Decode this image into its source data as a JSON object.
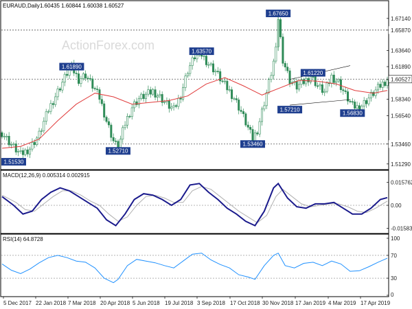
{
  "header": {
    "symbol": "EURAUD,Daily",
    "ohlc": "1.60435 1.60844 1.60038 1.60527"
  },
  "watermark": "ActionForex.com",
  "colors": {
    "candle": "#2e8b57",
    "ma": "#e03a3a",
    "macd": "#1a1a8c",
    "signal": "#b0b0b0",
    "rsi": "#1e90ff",
    "annotation_bg": "#1f3f8f",
    "hline": "#555555"
  },
  "chart_data": [
    {
      "type": "line",
      "panel": "price",
      "title": "",
      "y_ticks": [
        "1.67140",
        "1.65870",
        "1.63640",
        "1.61890",
        "1.60527",
        "1.58340",
        "1.56540",
        "1.53460",
        "1.51290"
      ],
      "ylim": [
        1.509,
        1.681
      ],
      "x_ticks": [
        "5 Dec 2017",
        "22 Jan 2018",
        "7 Mar 2018",
        "20 Apr 2018",
        "5 Jun 2018",
        "19 Jul 2018",
        "3 Sep 2018",
        "17 Oct 2018",
        "30 Nov 2018",
        "17 Jan 2019",
        "4 Mar 2019",
        "17 Apr 2019"
      ],
      "close_path": [
        [
          0,
          1.547
        ],
        [
          4,
          1.534
        ],
        [
          8,
          1.523
        ],
        [
          12,
          1.53
        ],
        [
          16,
          1.545
        ],
        [
          20,
          1.572
        ],
        [
          24,
          1.592
        ],
        [
          28,
          1.612
        ],
        [
          30,
          1.618
        ],
        [
          33,
          1.605
        ],
        [
          36,
          1.61
        ],
        [
          39,
          1.598
        ],
        [
          42,
          1.585
        ],
        [
          45,
          1.56
        ],
        [
          48,
          1.538
        ],
        [
          50,
          1.53
        ],
        [
          53,
          1.557
        ],
        [
          56,
          1.575
        ],
        [
          59,
          1.584
        ],
        [
          62,
          1.588
        ],
        [
          65,
          1.592
        ],
        [
          68,
          1.586
        ],
        [
          71,
          1.578
        ],
        [
          74,
          1.572
        ],
        [
          77,
          1.588
        ],
        [
          80,
          1.615
        ],
        [
          83,
          1.63
        ],
        [
          86,
          1.632
        ],
        [
          89,
          1.622
        ],
        [
          92,
          1.614
        ],
        [
          95,
          1.602
        ],
        [
          98,
          1.592
        ],
        [
          100,
          1.585
        ],
        [
          103,
          1.57
        ],
        [
          106,
          1.552
        ],
        [
          108,
          1.54
        ],
        [
          110,
          1.55
        ],
        [
          113,
          1.58
        ],
        [
          116,
          1.612
        ],
        [
          118,
          1.636
        ],
        [
          119,
          1.672
        ],
        [
          121,
          1.627
        ],
        [
          124,
          1.604
        ],
        [
          127,
          1.597
        ],
        [
          130,
          1.602
        ],
        [
          133,
          1.609
        ],
        [
          136,
          1.598
        ],
        [
          139,
          1.591
        ],
        [
          142,
          1.608
        ],
        [
          145,
          1.602
        ],
        [
          148,
          1.588
        ],
        [
          151,
          1.576
        ],
        [
          154,
          1.574
        ],
        [
          157,
          1.582
        ],
        [
          160,
          1.59
        ],
        [
          163,
          1.598
        ],
        [
          166,
          1.605
        ]
      ],
      "ma_path": [
        [
          0,
          1.53
        ],
        [
          8,
          1.532
        ],
        [
          16,
          1.54
        ],
        [
          24,
          1.56
        ],
        [
          32,
          1.578
        ],
        [
          40,
          1.59
        ],
        [
          48,
          1.586
        ],
        [
          56,
          1.578
        ],
        [
          64,
          1.58
        ],
        [
          72,
          1.582
        ],
        [
          80,
          1.587
        ],
        [
          88,
          1.6
        ],
        [
          96,
          1.607
        ],
        [
          104,
          1.598
        ],
        [
          112,
          1.588
        ],
        [
          120,
          1.596
        ],
        [
          128,
          1.604
        ],
        [
          136,
          1.603
        ],
        [
          144,
          1.6
        ],
        [
          152,
          1.593
        ],
        [
          160,
          1.59
        ],
        [
          166,
          1.593
        ]
      ],
      "hlines": [
        1.6587,
        1.60527,
        1.5346
      ],
      "annotations": [
        {
          "label": "1.51530",
          "x": 1,
          "y": 1.5153
        },
        {
          "label": "1.61890",
          "x": 30,
          "y": 1.6189
        },
        {
          "label": "1.52710",
          "x": 50,
          "y": 1.5271
        },
        {
          "label": "1.63570",
          "x": 86,
          "y": 1.6357
        },
        {
          "label": "1.53460",
          "x": 108,
          "y": 1.5346
        },
        {
          "label": "1.67650",
          "x": 119,
          "y": 1.6765
        },
        {
          "label": "1.57210",
          "x": 124,
          "y": 1.5721
        },
        {
          "label": "1.61220",
          "x": 134,
          "y": 1.6122
        },
        {
          "label": "1.56830",
          "x": 151,
          "y": 1.5683
        }
      ],
      "price_label_last": "1.60527",
      "support_label": "1.53460",
      "resistance_label": "1.65870"
    },
    {
      "type": "line",
      "panel": "macd",
      "title": "MACD(12,26,9) 0.005314 0.002915",
      "y_ticks": [
        "0.015762",
        "0.00",
        "-0.015834"
      ],
      "ylim": [
        -0.0175,
        0.0175
      ],
      "macd_path": [
        [
          0,
          0.006
        ],
        [
          5,
          0.0
        ],
        [
          9,
          -0.006
        ],
        [
          13,
          -0.004
        ],
        [
          17,
          0.004
        ],
        [
          21,
          0.009
        ],
        [
          25,
          0.012
        ],
        [
          29,
          0.01
        ],
        [
          33,
          0.006
        ],
        [
          37,
          0.002
        ],
        [
          41,
          -0.002
        ],
        [
          45,
          -0.01
        ],
        [
          49,
          -0.014
        ],
        [
          53,
          -0.006
        ],
        [
          57,
          0.004
        ],
        [
          61,
          0.008
        ],
        [
          65,
          0.007
        ],
        [
          69,
          0.004
        ],
        [
          73,
          0.0
        ],
        [
          77,
          0.004
        ],
        [
          81,
          0.014
        ],
        [
          85,
          0.015
        ],
        [
          89,
          0.009
        ],
        [
          93,
          0.004
        ],
        [
          97,
          -0.002
        ],
        [
          101,
          -0.006
        ],
        [
          105,
          -0.011
        ],
        [
          109,
          -0.014
        ],
        [
          113,
          -0.004
        ],
        [
          117,
          0.012
        ],
        [
          119,
          0.015
        ],
        [
          123,
          0.005
        ],
        [
          127,
          -0.001
        ],
        [
          131,
          -0.002
        ],
        [
          135,
          0.001
        ],
        [
          139,
          0.001
        ],
        [
          143,
          0.002
        ],
        [
          147,
          -0.002
        ],
        [
          151,
          -0.006
        ],
        [
          155,
          -0.006
        ],
        [
          159,
          -0.002
        ],
        [
          163,
          0.004
        ],
        [
          166,
          0.0053
        ]
      ],
      "signal_path": [
        [
          0,
          0.007
        ],
        [
          6,
          0.002
        ],
        [
          10,
          -0.003
        ],
        [
          14,
          -0.004
        ],
        [
          18,
          0.001
        ],
        [
          22,
          0.006
        ],
        [
          26,
          0.01
        ],
        [
          30,
          0.01
        ],
        [
          34,
          0.007
        ],
        [
          38,
          0.003
        ],
        [
          42,
          0.0
        ],
        [
          46,
          -0.006
        ],
        [
          50,
          -0.011
        ],
        [
          54,
          -0.008
        ],
        [
          58,
          0.0
        ],
        [
          62,
          0.006
        ],
        [
          66,
          0.007
        ],
        [
          70,
          0.005
        ],
        [
          74,
          0.002
        ],
        [
          78,
          0.002
        ],
        [
          82,
          0.01
        ],
        [
          86,
          0.013
        ],
        [
          90,
          0.011
        ],
        [
          94,
          0.006
        ],
        [
          98,
          0.001
        ],
        [
          102,
          -0.004
        ],
        [
          106,
          -0.008
        ],
        [
          110,
          -0.012
        ],
        [
          114,
          -0.007
        ],
        [
          118,
          0.006
        ],
        [
          121,
          0.011
        ],
        [
          125,
          0.006
        ],
        [
          129,
          0.001
        ],
        [
          133,
          -0.001
        ],
        [
          137,
          0.0
        ],
        [
          141,
          0.001
        ],
        [
          145,
          0.001
        ],
        [
          149,
          -0.001
        ],
        [
          153,
          -0.004
        ],
        [
          157,
          -0.005
        ],
        [
          161,
          -0.002
        ],
        [
          166,
          0.0029
        ]
      ]
    },
    {
      "type": "line",
      "panel": "rsi",
      "title": "RSI(14) 64.8728",
      "y_ticks": [
        "100",
        "70",
        "30",
        "0"
      ],
      "ylim": [
        0,
        100
      ],
      "levels": [
        70,
        30
      ],
      "rsi_path": [
        [
          0,
          55
        ],
        [
          4,
          44
        ],
        [
          8,
          38
        ],
        [
          12,
          46
        ],
        [
          16,
          57
        ],
        [
          20,
          66
        ],
        [
          24,
          70
        ],
        [
          28,
          66
        ],
        [
          32,
          60
        ],
        [
          36,
          58
        ],
        [
          40,
          48
        ],
        [
          44,
          30
        ],
        [
          48,
          22
        ],
        [
          50,
          28
        ],
        [
          54,
          52
        ],
        [
          58,
          63
        ],
        [
          62,
          60
        ],
        [
          66,
          57
        ],
        [
          70,
          52
        ],
        [
          74,
          48
        ],
        [
          78,
          60
        ],
        [
          82,
          72
        ],
        [
          86,
          74
        ],
        [
          90,
          62
        ],
        [
          94,
          54
        ],
        [
          98,
          48
        ],
        [
          102,
          36
        ],
        [
          106,
          32
        ],
        [
          109,
          28
        ],
        [
          113,
          52
        ],
        [
          117,
          70
        ],
        [
          119,
          74
        ],
        [
          122,
          52
        ],
        [
          126,
          48
        ],
        [
          130,
          56
        ],
        [
          134,
          58
        ],
        [
          138,
          52
        ],
        [
          142,
          60
        ],
        [
          146,
          55
        ],
        [
          150,
          42
        ],
        [
          154,
          43
        ],
        [
          158,
          50
        ],
        [
          162,
          58
        ],
        [
          166,
          65
        ]
      ]
    }
  ]
}
